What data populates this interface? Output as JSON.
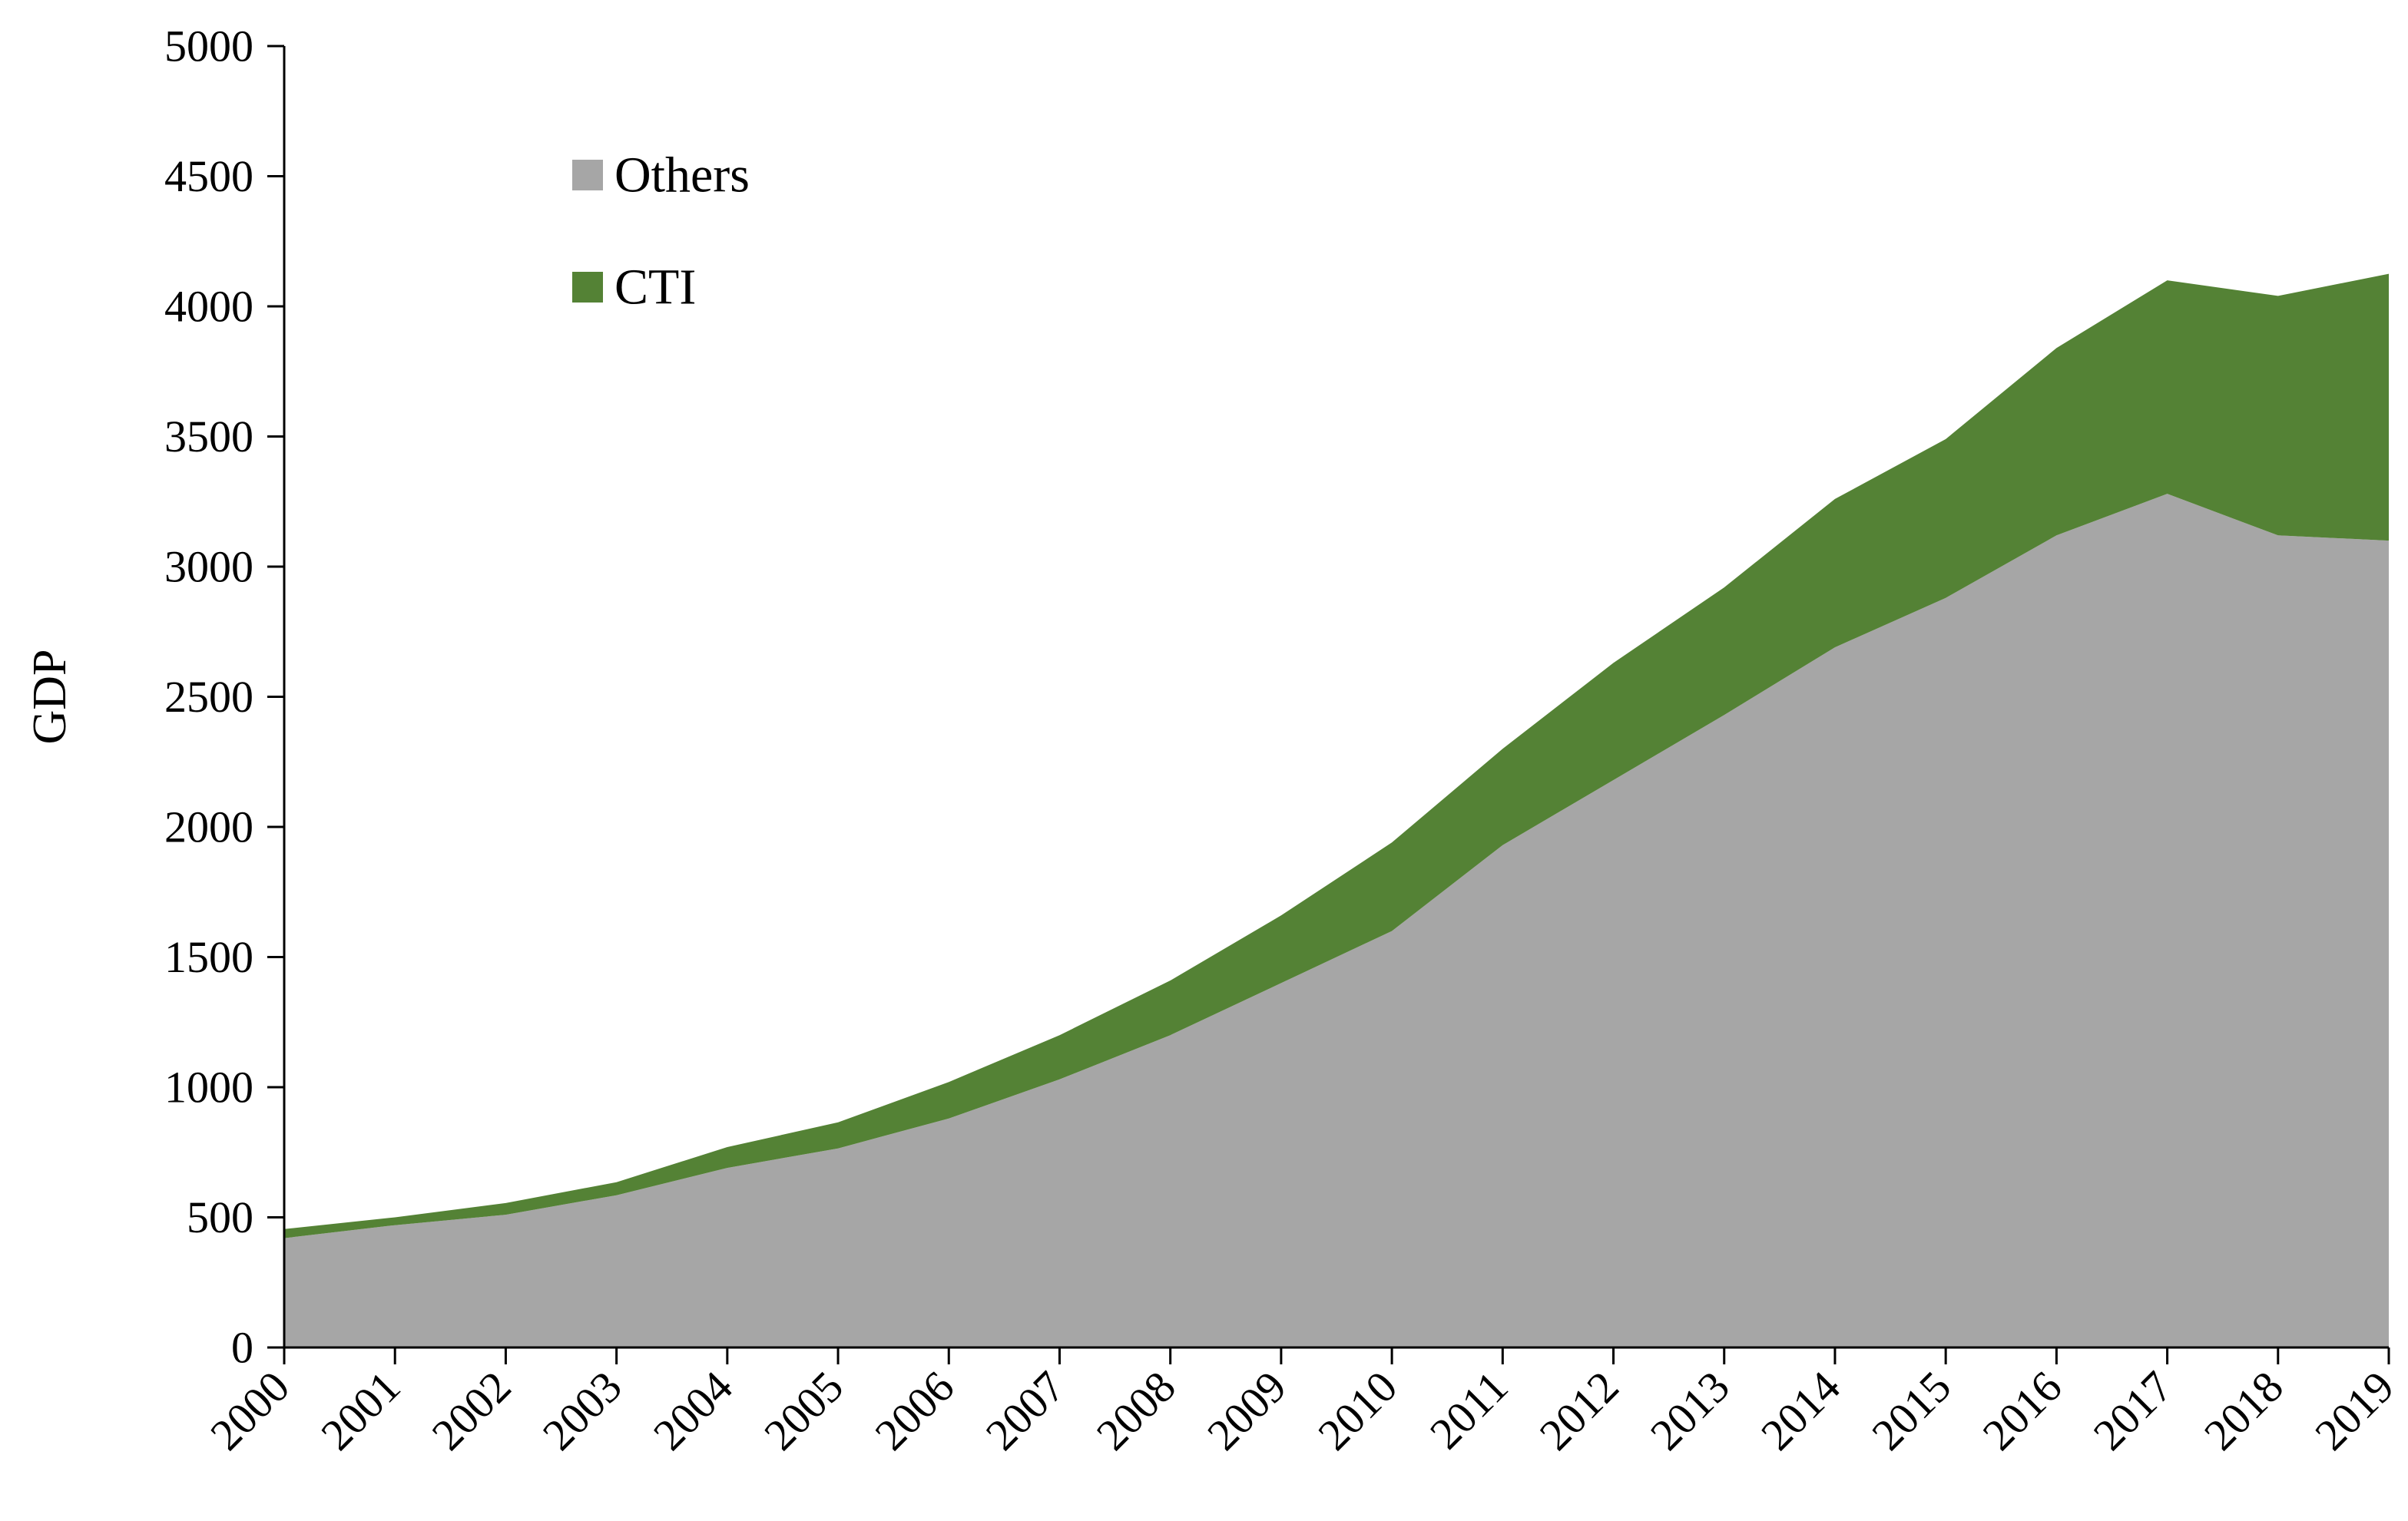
{
  "chart_data": {
    "type": "area",
    "stacked": true,
    "x": [
      "2000",
      "2001",
      "2002",
      "2003",
      "2004",
      "2005",
      "2006",
      "2007",
      "2008",
      "2009",
      "2010",
      "2011",
      "2012",
      "2013",
      "2014",
      "2015",
      "2016",
      "2017",
      "2018",
      "2019"
    ],
    "series": [
      {
        "name": "Others",
        "color": "#a6a6a6",
        "values": [
          420,
          470,
          510,
          585,
          690,
          765,
          880,
          1030,
          1200,
          1400,
          1600,
          1930,
          2180,
          2430,
          2690,
          2880,
          3120,
          3280,
          3120,
          3100
        ]
      },
      {
        "name": "CTI",
        "color": "#548235",
        "values": [
          35,
          30,
          45,
          50,
          80,
          100,
          140,
          170,
          210,
          260,
          340,
          370,
          450,
          490,
          570,
          610,
          720,
          820,
          920,
          1025
        ]
      }
    ],
    "xlabel": "",
    "ylabel": "GDP",
    "ylim": [
      0,
      5000
    ],
    "yticks": [
      "0",
      "500",
      "1000",
      "1500",
      "2000",
      "2500",
      "3000",
      "3500",
      "4000",
      "4500",
      "5000"
    ],
    "grid": false,
    "legend_position": "top-left",
    "legend_order": [
      "Others",
      "CTI"
    ]
  }
}
